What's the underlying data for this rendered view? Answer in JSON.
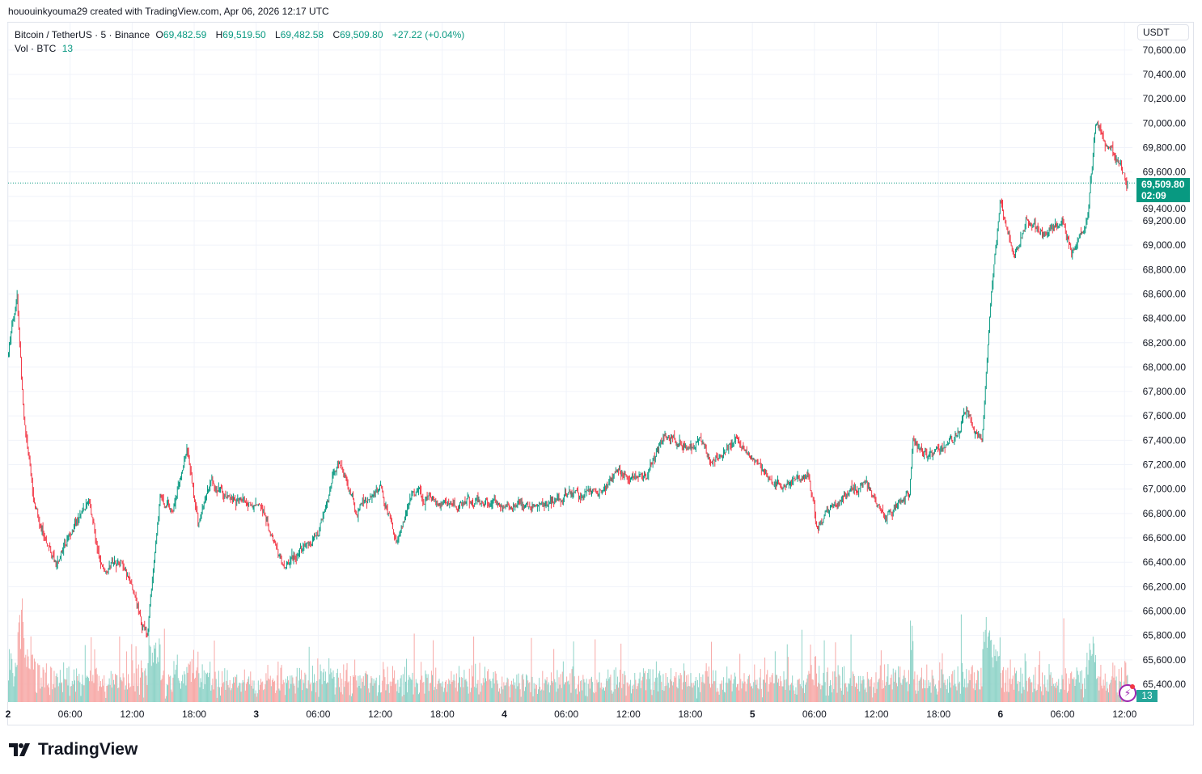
{
  "credit": "hououinkyouma29 created with TradingView.com, Apr 06, 2026 12:17 UTC",
  "legend": {
    "symbol": "Bitcoin / TetherUS · 5 · Binance",
    "open_label": "O",
    "open": "69,482.59",
    "high_label": "H",
    "high": "69,519.50",
    "low_label": "L",
    "low": "69,482.58",
    "close_label": "C",
    "close": "69,509.80",
    "change": "+27.22 (+0.04%)",
    "vol_label": "Vol · BTC",
    "vol": "13"
  },
  "currency_button": "USDT",
  "last_price": {
    "price": "69,509.80",
    "countdown": "02:09"
  },
  "volume_badge": "13",
  "logo_text": "TradingView",
  "colors": {
    "up": "#089981",
    "down": "#f23645",
    "vol_up": "#8fd3c8",
    "vol_down": "#f7a9a7",
    "grid": "#f0f3fa",
    "indicator": "#9c27b0"
  },
  "chart_data": {
    "type": "candlestick",
    "interval": "5m",
    "ylim": [
      65300,
      70700
    ],
    "y_ticks": [
      "65,400.00",
      "65,600.00",
      "65,800.00",
      "66,000.00",
      "66,200.00",
      "66,400.00",
      "66,600.00",
      "66,800.00",
      "67,000.00",
      "67,200.00",
      "67,400.00",
      "67,600.00",
      "67,800.00",
      "68,000.00",
      "68,200.00",
      "68,400.00",
      "68,600.00",
      "68,800.00",
      "69,000.00",
      "69,200.00",
      "69,400.00",
      "69,600.00",
      "69,800.00",
      "70,000.00",
      "70,200.00",
      "70,400.00",
      "70,600.00"
    ],
    "x_ticks": [
      {
        "t": "2026-04-02T00:00",
        "label": "2"
      },
      {
        "t": "2026-04-02T06:00",
        "label": "06:00"
      },
      {
        "t": "2026-04-02T12:00",
        "label": "12:00"
      },
      {
        "t": "2026-04-02T18:00",
        "label": "18:00"
      },
      {
        "t": "2026-04-03T00:00",
        "label": "3"
      },
      {
        "t": "2026-04-03T06:00",
        "label": "06:00"
      },
      {
        "t": "2026-04-03T12:00",
        "label": "12:00"
      },
      {
        "t": "2026-04-03T18:00",
        "label": "18:00"
      },
      {
        "t": "2026-04-04T00:00",
        "label": "4"
      },
      {
        "t": "2026-04-04T06:00",
        "label": "06:00"
      },
      {
        "t": "2026-04-04T12:00",
        "label": "12:00"
      },
      {
        "t": "2026-04-04T18:00",
        "label": "18:00"
      },
      {
        "t": "2026-04-05T00:00",
        "label": "5"
      },
      {
        "t": "2026-04-05T06:00",
        "label": "06:00"
      },
      {
        "t": "2026-04-05T12:00",
        "label": "12:00"
      },
      {
        "t": "2026-04-05T18:00",
        "label": "18:00"
      },
      {
        "t": "2026-04-06T00:00",
        "label": "6"
      },
      {
        "t": "2026-04-06T06:00",
        "label": "06:00"
      },
      {
        "t": "2026-04-06T12:00",
        "label": "12:00"
      }
    ],
    "last_close": 69509.8,
    "price_path": [
      [
        "2026-04-02T00:00",
        68090
      ],
      [
        "2026-04-02T00:55",
        68620
      ],
      [
        "2026-04-02T01:35",
        67560
      ],
      [
        "2026-04-02T02:20",
        67030
      ],
      [
        "2026-04-02T03:10",
        66700
      ],
      [
        "2026-04-02T04:40",
        66370
      ],
      [
        "2026-04-02T06:00",
        66630
      ],
      [
        "2026-04-02T07:50",
        66900
      ],
      [
        "2026-04-02T09:00",
        66370
      ],
      [
        "2026-04-02T10:55",
        66430
      ],
      [
        "2026-04-02T12:00",
        66170
      ],
      [
        "2026-04-02T13:30",
        65770
      ],
      [
        "2026-04-02T14:45",
        66900
      ],
      [
        "2026-04-02T16:00",
        66830
      ],
      [
        "2026-04-02T17:20",
        67360
      ],
      [
        "2026-04-02T18:25",
        66700
      ],
      [
        "2026-04-02T19:35",
        67030
      ],
      [
        "2026-04-02T21:55",
        66900
      ],
      [
        "2026-04-03T00:00",
        66900
      ],
      [
        "2026-04-03T01:50",
        66570
      ],
      [
        "2026-04-03T02:35",
        66370
      ],
      [
        "2026-04-03T06:00",
        66630
      ],
      [
        "2026-04-03T08:05",
        67230
      ],
      [
        "2026-04-03T09:40",
        66830
      ],
      [
        "2026-04-03T12:00",
        67030
      ],
      [
        "2026-04-03T13:35",
        66570
      ],
      [
        "2026-04-03T15:05",
        66960
      ],
      [
        "2026-04-03T18:00",
        66870
      ],
      [
        "2026-04-03T20:35",
        66900
      ],
      [
        "2026-04-04T00:00",
        66900
      ],
      [
        "2026-04-04T02:50",
        66830
      ],
      [
        "2026-04-04T06:00",
        66930
      ],
      [
        "2026-04-04T09:05",
        66960
      ],
      [
        "2026-04-04T11:05",
        67160
      ],
      [
        "2026-04-04T13:50",
        67100
      ],
      [
        "2026-04-04T15:25",
        67430
      ],
      [
        "2026-04-04T18:00",
        67360
      ],
      [
        "2026-04-04T19:20",
        67400
      ],
      [
        "2026-04-04T20:05",
        67230
      ],
      [
        "2026-04-04T22:25",
        67400
      ],
      [
        "2026-04-05T00:00",
        67260
      ],
      [
        "2026-04-05T02:20",
        67030
      ],
      [
        "2026-04-05T05:30",
        67100
      ],
      [
        "2026-04-05T06:15",
        66700
      ],
      [
        "2026-04-05T09:25",
        67000
      ],
      [
        "2026-04-05T10:55",
        67060
      ],
      [
        "2026-04-05T12:55",
        66770
      ],
      [
        "2026-04-05T15:15",
        66960
      ],
      [
        "2026-04-05T15:35",
        67400
      ],
      [
        "2026-04-05T17:10",
        67230
      ],
      [
        "2026-04-05T19:30",
        67400
      ],
      [
        "2026-04-05T20:45",
        67630
      ],
      [
        "2026-04-05T22:15",
        67400
      ],
      [
        "2026-04-05T23:05",
        68560
      ],
      [
        "2026-04-06T00:00",
        69350
      ],
      [
        "2026-04-06T01:25",
        68890
      ],
      [
        "2026-04-06T02:35",
        69220
      ],
      [
        "2026-04-06T04:10",
        69090
      ],
      [
        "2026-04-06T06:05",
        69220
      ],
      [
        "2026-04-06T06:55",
        68890
      ],
      [
        "2026-04-06T08:30",
        69220
      ],
      [
        "2026-04-06T09:15",
        70010
      ],
      [
        "2026-04-06T10:50",
        69780
      ],
      [
        "2026-04-06T12:15",
        69510
      ]
    ]
  }
}
